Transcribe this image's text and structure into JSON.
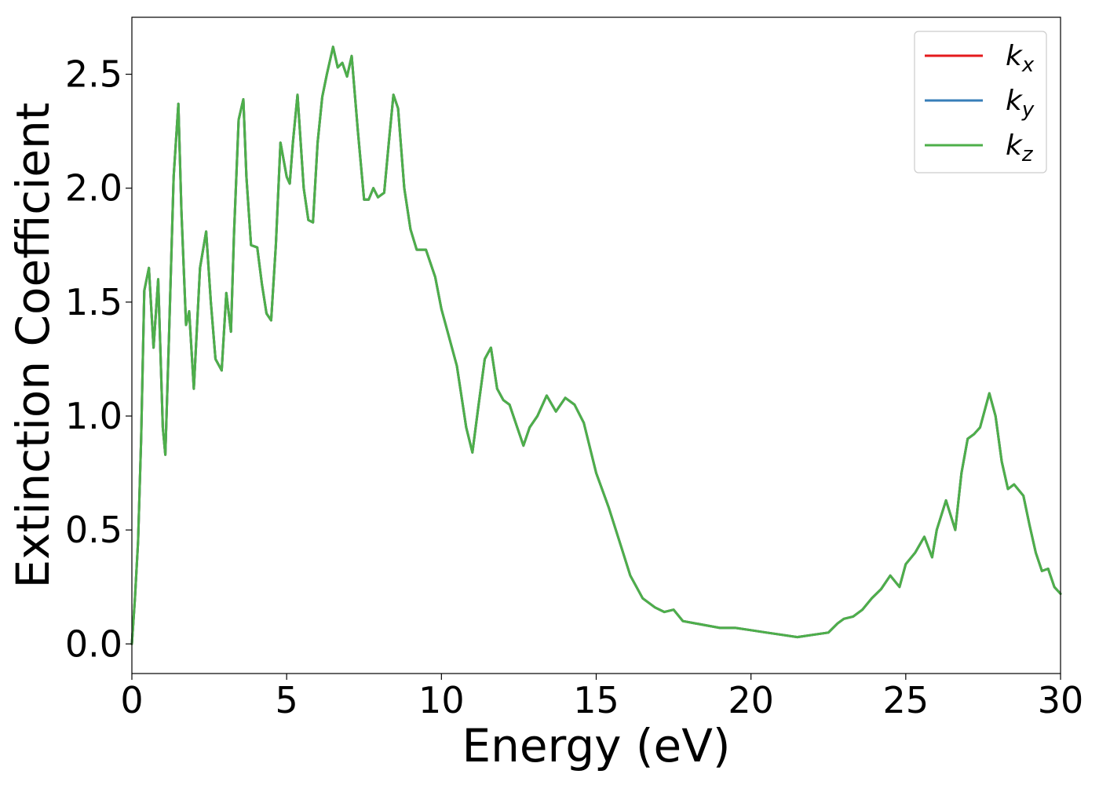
{
  "chart_data": {
    "type": "line",
    "title": "",
    "xlabel": "Energy (eV)",
    "ylabel": "Extinction Coefficient",
    "xlim": [
      0,
      30
    ],
    "ylim": [
      -0.13,
      2.75
    ],
    "xticks": [
      0,
      5,
      10,
      15,
      20,
      25,
      30
    ],
    "xtick_labels": [
      "0",
      "5",
      "10",
      "15",
      "20",
      "25",
      "30"
    ],
    "yticks": [
      0.0,
      0.5,
      1.0,
      1.5,
      2.0,
      2.5
    ],
    "ytick_labels": [
      "0.0",
      "0.5",
      "1.0",
      "1.5",
      "2.0",
      "2.5"
    ],
    "grid": false,
    "legend_position": "top-right",
    "series": [
      {
        "name": "k_x",
        "legend": {
          "base": "k",
          "sub": "x"
        },
        "color": "#e41a1c",
        "x": [
          0,
          0.1,
          0.2,
          0.3,
          0.4,
          0.55,
          0.7,
          0.85,
          1.0,
          1.08,
          1.2,
          1.35,
          1.5,
          1.6,
          1.75,
          1.85,
          2.0,
          2.2,
          2.4,
          2.55,
          2.7,
          2.9,
          3.05,
          3.2,
          3.3,
          3.45,
          3.6,
          3.7,
          3.85,
          4.05,
          4.2,
          4.35,
          4.5,
          4.65,
          4.8,
          5.0,
          5.1,
          5.2,
          5.35,
          5.55,
          5.7,
          5.85,
          6.0,
          6.15,
          6.3,
          6.5,
          6.65,
          6.8,
          6.95,
          7.1,
          7.3,
          7.5,
          7.65,
          7.8,
          7.95,
          8.15,
          8.3,
          8.45,
          8.6,
          8.8,
          9.0,
          9.2,
          9.5,
          9.8,
          10.0,
          10.2,
          10.5,
          10.8,
          11.0,
          11.2,
          11.4,
          11.6,
          11.8,
          12.0,
          12.2,
          12.45,
          12.65,
          12.85,
          13.1,
          13.4,
          13.7,
          14.0,
          14.3,
          14.6,
          15.0,
          15.4,
          15.8,
          16.1,
          16.5,
          16.9,
          17.2,
          17.5,
          17.8,
          18.2,
          18.6,
          19.0,
          19.5,
          20.0,
          20.5,
          21.0,
          21.5,
          22.0,
          22.5,
          22.8,
          23.0,
          23.3,
          23.6,
          23.9,
          24.2,
          24.5,
          24.8,
          25.0,
          25.3,
          25.6,
          25.85,
          26.0,
          26.3,
          26.6,
          26.8,
          27.0,
          27.2,
          27.4,
          27.7,
          27.9,
          28.1,
          28.3,
          28.5,
          28.8,
          29.0,
          29.2,
          29.4,
          29.6,
          29.8,
          30.0
        ],
        "y": [
          0.0,
          0.2,
          0.45,
          0.9,
          1.55,
          1.65,
          1.3,
          1.6,
          0.95,
          0.83,
          1.35,
          2.05,
          2.37,
          1.9,
          1.4,
          1.46,
          1.12,
          1.65,
          1.81,
          1.5,
          1.25,
          1.2,
          1.54,
          1.37,
          1.8,
          2.3,
          2.39,
          2.05,
          1.75,
          1.74,
          1.58,
          1.45,
          1.42,
          1.75,
          2.2,
          2.05,
          2.02,
          2.2,
          2.41,
          2.0,
          1.86,
          1.85,
          2.2,
          2.4,
          2.5,
          2.62,
          2.53,
          2.55,
          2.49,
          2.58,
          2.25,
          1.95,
          1.95,
          2.0,
          1.96,
          1.98,
          2.2,
          2.41,
          2.35,
          2.0,
          1.82,
          1.73,
          1.73,
          1.61,
          1.47,
          1.37,
          1.22,
          0.95,
          0.84,
          1.05,
          1.25,
          1.3,
          1.12,
          1.07,
          1.05,
          0.95,
          0.87,
          0.95,
          1.0,
          1.09,
          1.02,
          1.08,
          1.05,
          0.97,
          0.75,
          0.6,
          0.43,
          0.3,
          0.2,
          0.16,
          0.14,
          0.15,
          0.1,
          0.09,
          0.08,
          0.07,
          0.07,
          0.06,
          0.05,
          0.04,
          0.03,
          0.04,
          0.05,
          0.09,
          0.11,
          0.12,
          0.15,
          0.2,
          0.24,
          0.3,
          0.25,
          0.35,
          0.4,
          0.47,
          0.38,
          0.5,
          0.63,
          0.5,
          0.75,
          0.9,
          0.92,
          0.95,
          1.1,
          1.0,
          0.8,
          0.68,
          0.7,
          0.65,
          0.52,
          0.4,
          0.32,
          0.33,
          0.25,
          0.22
        ]
      },
      {
        "name": "k_y",
        "legend": {
          "base": "k",
          "sub": "y"
        },
        "color": "#377eb8",
        "x": [
          0,
          0.1,
          0.2,
          0.3,
          0.4,
          0.55,
          0.7,
          0.85,
          1.0,
          1.08,
          1.2,
          1.35,
          1.5,
          1.6,
          1.75,
          1.85,
          2.0,
          2.2,
          2.4,
          2.55,
          2.7,
          2.9,
          3.05,
          3.2,
          3.3,
          3.45,
          3.6,
          3.7,
          3.85,
          4.05,
          4.2,
          4.35,
          4.5,
          4.65,
          4.8,
          5.0,
          5.1,
          5.2,
          5.35,
          5.55,
          5.7,
          5.85,
          6.0,
          6.15,
          6.3,
          6.5,
          6.65,
          6.8,
          6.95,
          7.1,
          7.3,
          7.5,
          7.65,
          7.8,
          7.95,
          8.15,
          8.3,
          8.45,
          8.6,
          8.8,
          9.0,
          9.2,
          9.5,
          9.8,
          10.0,
          10.2,
          10.5,
          10.8,
          11.0,
          11.2,
          11.4,
          11.6,
          11.8,
          12.0,
          12.2,
          12.45,
          12.65,
          12.85,
          13.1,
          13.4,
          13.7,
          14.0,
          14.3,
          14.6,
          15.0,
          15.4,
          15.8,
          16.1,
          16.5,
          16.9,
          17.2,
          17.5,
          17.8,
          18.2,
          18.6,
          19.0,
          19.5,
          20.0,
          20.5,
          21.0,
          21.5,
          22.0,
          22.5,
          22.8,
          23.0,
          23.3,
          23.6,
          23.9,
          24.2,
          24.5,
          24.8,
          25.0,
          25.3,
          25.6,
          25.85,
          26.0,
          26.3,
          26.6,
          26.8,
          27.0,
          27.2,
          27.4,
          27.7,
          27.9,
          28.1,
          28.3,
          28.5,
          28.8,
          29.0,
          29.2,
          29.4,
          29.6,
          29.8,
          30.0
        ],
        "y": [
          0.0,
          0.2,
          0.45,
          0.9,
          1.55,
          1.65,
          1.3,
          1.6,
          0.95,
          0.83,
          1.35,
          2.05,
          2.37,
          1.9,
          1.4,
          1.46,
          1.12,
          1.65,
          1.81,
          1.5,
          1.25,
          1.2,
          1.54,
          1.37,
          1.8,
          2.3,
          2.39,
          2.05,
          1.75,
          1.74,
          1.58,
          1.45,
          1.42,
          1.75,
          2.2,
          2.05,
          2.02,
          2.2,
          2.41,
          2.0,
          1.86,
          1.85,
          2.2,
          2.4,
          2.5,
          2.62,
          2.53,
          2.55,
          2.49,
          2.58,
          2.25,
          1.95,
          1.95,
          2.0,
          1.96,
          1.98,
          2.2,
          2.41,
          2.35,
          2.0,
          1.82,
          1.73,
          1.73,
          1.61,
          1.47,
          1.37,
          1.22,
          0.95,
          0.84,
          1.05,
          1.25,
          1.3,
          1.12,
          1.07,
          1.05,
          0.95,
          0.87,
          0.95,
          1.0,
          1.09,
          1.02,
          1.08,
          1.05,
          0.97,
          0.75,
          0.6,
          0.43,
          0.3,
          0.2,
          0.16,
          0.14,
          0.15,
          0.1,
          0.09,
          0.08,
          0.07,
          0.07,
          0.06,
          0.05,
          0.04,
          0.03,
          0.04,
          0.05,
          0.09,
          0.11,
          0.12,
          0.15,
          0.2,
          0.24,
          0.3,
          0.25,
          0.35,
          0.4,
          0.47,
          0.38,
          0.5,
          0.63,
          0.5,
          0.75,
          0.9,
          0.92,
          0.95,
          1.1,
          1.0,
          0.8,
          0.68,
          0.7,
          0.65,
          0.52,
          0.4,
          0.32,
          0.33,
          0.25,
          0.22
        ]
      },
      {
        "name": "k_z",
        "legend": {
          "base": "k",
          "sub": "z"
        },
        "color": "#4daf4a",
        "x": [
          0,
          0.1,
          0.2,
          0.3,
          0.4,
          0.55,
          0.7,
          0.85,
          1.0,
          1.08,
          1.2,
          1.35,
          1.5,
          1.6,
          1.75,
          1.85,
          2.0,
          2.2,
          2.4,
          2.55,
          2.7,
          2.9,
          3.05,
          3.2,
          3.3,
          3.45,
          3.6,
          3.7,
          3.85,
          4.05,
          4.2,
          4.35,
          4.5,
          4.65,
          4.8,
          5.0,
          5.1,
          5.2,
          5.35,
          5.55,
          5.7,
          5.85,
          6.0,
          6.15,
          6.3,
          6.5,
          6.65,
          6.8,
          6.95,
          7.1,
          7.3,
          7.5,
          7.65,
          7.8,
          7.95,
          8.15,
          8.3,
          8.45,
          8.6,
          8.8,
          9.0,
          9.2,
          9.5,
          9.8,
          10.0,
          10.2,
          10.5,
          10.8,
          11.0,
          11.2,
          11.4,
          11.6,
          11.8,
          12.0,
          12.2,
          12.45,
          12.65,
          12.85,
          13.1,
          13.4,
          13.7,
          14.0,
          14.3,
          14.6,
          15.0,
          15.4,
          15.8,
          16.1,
          16.5,
          16.9,
          17.2,
          17.5,
          17.8,
          18.2,
          18.6,
          19.0,
          19.5,
          20.0,
          20.5,
          21.0,
          21.5,
          22.0,
          22.5,
          22.8,
          23.0,
          23.3,
          23.6,
          23.9,
          24.2,
          24.5,
          24.8,
          25.0,
          25.3,
          25.6,
          25.85,
          26.0,
          26.3,
          26.6,
          26.8,
          27.0,
          27.2,
          27.4,
          27.7,
          27.9,
          28.1,
          28.3,
          28.5,
          28.8,
          29.0,
          29.2,
          29.4,
          29.6,
          29.8,
          30.0
        ],
        "y": [
          0.0,
          0.2,
          0.45,
          0.9,
          1.55,
          1.65,
          1.3,
          1.6,
          0.95,
          0.83,
          1.35,
          2.05,
          2.37,
          1.9,
          1.4,
          1.46,
          1.12,
          1.65,
          1.81,
          1.5,
          1.25,
          1.2,
          1.54,
          1.37,
          1.8,
          2.3,
          2.39,
          2.05,
          1.75,
          1.74,
          1.58,
          1.45,
          1.42,
          1.75,
          2.2,
          2.05,
          2.02,
          2.2,
          2.41,
          2.0,
          1.86,
          1.85,
          2.2,
          2.4,
          2.5,
          2.62,
          2.53,
          2.55,
          2.49,
          2.58,
          2.25,
          1.95,
          1.95,
          2.0,
          1.96,
          1.98,
          2.2,
          2.41,
          2.35,
          2.0,
          1.82,
          1.73,
          1.73,
          1.61,
          1.47,
          1.37,
          1.22,
          0.95,
          0.84,
          1.05,
          1.25,
          1.3,
          1.12,
          1.07,
          1.05,
          0.95,
          0.87,
          0.95,
          1.0,
          1.09,
          1.02,
          1.08,
          1.05,
          0.97,
          0.75,
          0.6,
          0.43,
          0.3,
          0.2,
          0.16,
          0.14,
          0.15,
          0.1,
          0.09,
          0.08,
          0.07,
          0.07,
          0.06,
          0.05,
          0.04,
          0.03,
          0.04,
          0.05,
          0.09,
          0.11,
          0.12,
          0.15,
          0.2,
          0.24,
          0.3,
          0.25,
          0.35,
          0.4,
          0.47,
          0.38,
          0.5,
          0.63,
          0.5,
          0.75,
          0.9,
          0.92,
          0.95,
          1.1,
          1.0,
          0.8,
          0.68,
          0.7,
          0.65,
          0.52,
          0.4,
          0.32,
          0.33,
          0.25,
          0.22
        ]
      }
    ]
  }
}
